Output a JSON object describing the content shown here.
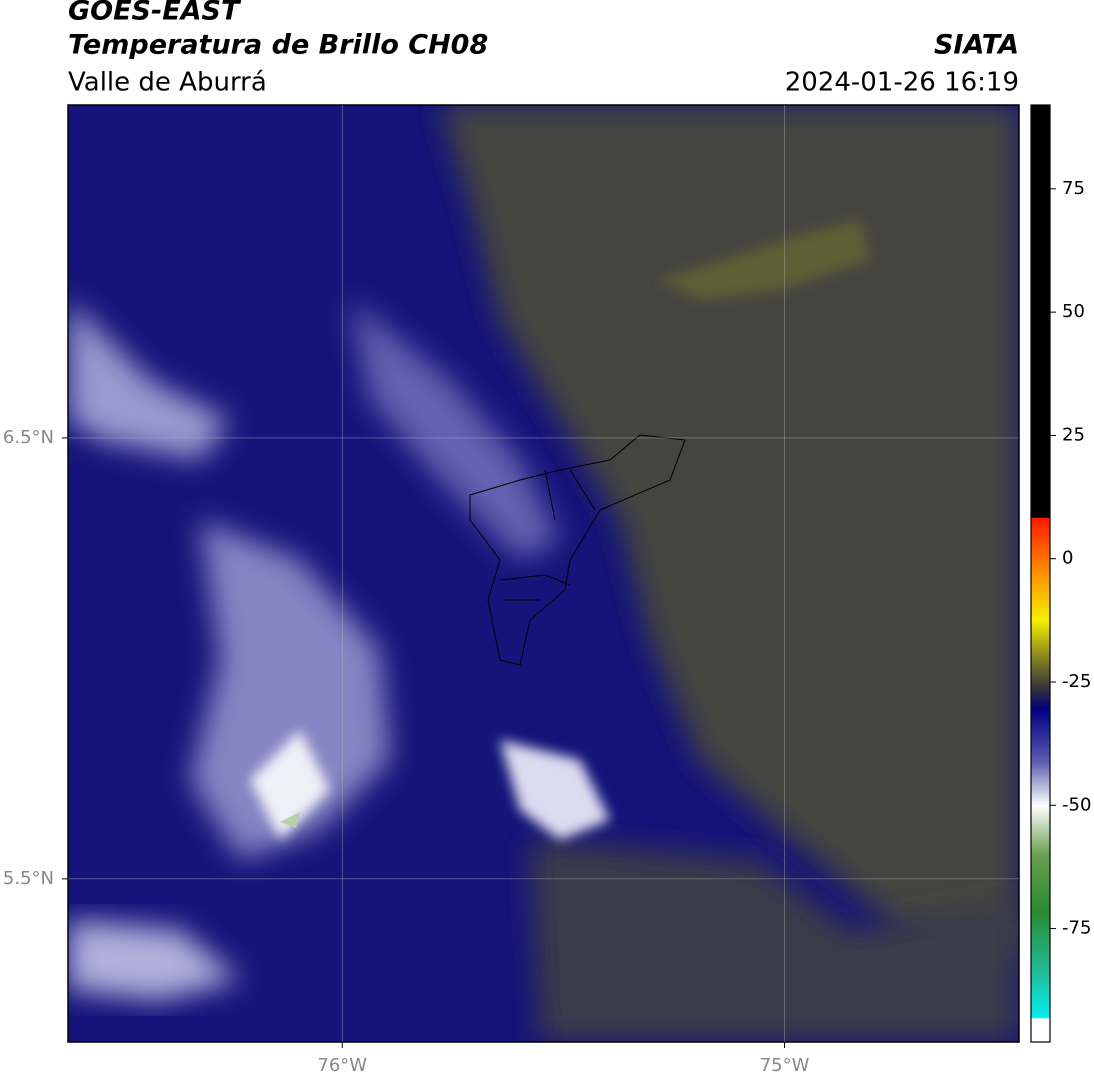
{
  "chart_data": {
    "type": "map",
    "title": "GOES-EAST",
    "subtitle": "Temperatura de Brillo CH08",
    "source": "SIATA",
    "region": "Valle de Aburrá",
    "timestamp": "2024-01-26 16:19",
    "xlim": [
      -76.62,
      -74.47
    ],
    "ylim": [
      5.13,
      7.255
    ],
    "xticks": [
      {
        "value": -76,
        "label": "76°W"
      },
      {
        "value": -75,
        "label": "75°W"
      }
    ],
    "yticks": [
      {
        "value": 6.5,
        "label": "6.5°N"
      },
      {
        "value": 5.5,
        "label": "5.5°N"
      }
    ],
    "grid": true,
    "colorbar": {
      "lim": [
        -98,
        92
      ],
      "ticks": [
        75,
        50,
        25,
        0,
        -25,
        -50,
        -75
      ]
    }
  }
}
